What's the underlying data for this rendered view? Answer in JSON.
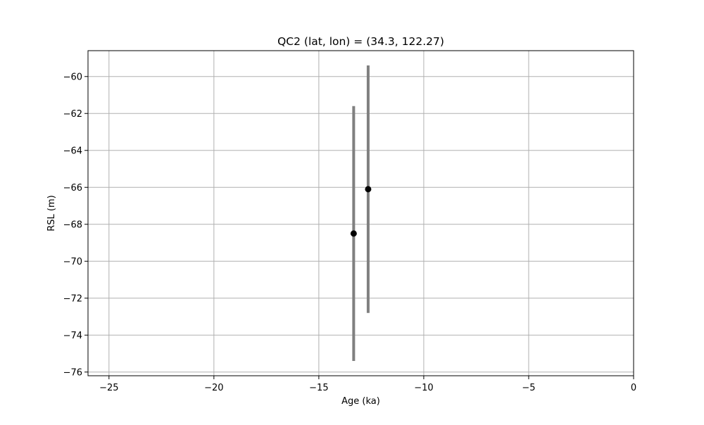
{
  "chart_data": {
    "type": "scatter",
    "title": "QC2 (lat, lon) = (34.3, 122.27)",
    "xlabel": "Age (ka)",
    "ylabel": "RSL (m)",
    "xlim": [
      -26,
      0
    ],
    "ylim": [
      -76.2,
      -58.6
    ],
    "xticks": [
      -25,
      -20,
      -15,
      -10,
      -5,
      0
    ],
    "xtick_labels": [
      "−25",
      "−20",
      "−15",
      "−10",
      "−5",
      "0"
    ],
    "yticks": [
      -76,
      -74,
      -72,
      -70,
      -68,
      -66,
      -64,
      -62,
      -60
    ],
    "ytick_labels": [
      "−76",
      "−74",
      "−72",
      "−70",
      "−68",
      "−66",
      "−64",
      "−62",
      "−60"
    ],
    "grid": true,
    "points": [
      {
        "x": -13.34,
        "y": -68.5,
        "y_low": -75.4,
        "y_high": -61.6
      },
      {
        "x": -12.65,
        "y": -66.1,
        "y_low": -72.8,
        "y_high": -59.4
      }
    ],
    "point_color": "#000000",
    "errorbar_color": "#808080",
    "grid_color": "#b0b0b0"
  }
}
